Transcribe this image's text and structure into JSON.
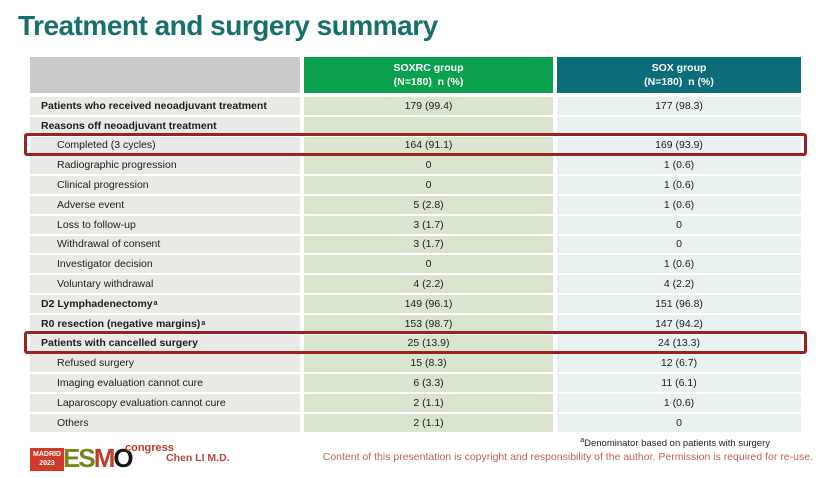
{
  "slide": {
    "title": "Treatment and surgery summary"
  },
  "table": {
    "header": {
      "soxrc": {
        "line1": "SOXRC group",
        "line2": "(N=180)  n (%)"
      },
      "sox": {
        "line1": "SOX group",
        "line2": "(N=180)  n (%)"
      }
    },
    "rows": [
      {
        "label": "Patients who received neoadjuvant treatment",
        "soxrc": "179 (99.4)",
        "sox": "177 (98.3)",
        "bold": true
      },
      {
        "label": "Reasons off neoadjuvant treatment",
        "soxrc": "",
        "sox": "",
        "bold": true
      },
      {
        "label": "Completed (3 cycles)",
        "soxrc": "164 (91.1)",
        "sox": "169 (93.9)",
        "indent": true,
        "highlight": true
      },
      {
        "label": "Radiographic progression",
        "soxrc": "0",
        "sox": "1 (0.6)",
        "indent": true
      },
      {
        "label": "Clinical progression",
        "soxrc": "0",
        "sox": "1 (0.6)",
        "indent": true
      },
      {
        "label": "Adverse event",
        "soxrc": "5 (2.8)",
        "sox": "1 (0.6)",
        "indent": true
      },
      {
        "label": "Loss to follow-up",
        "soxrc": "3 (1.7)",
        "sox": "0",
        "indent": true
      },
      {
        "label": "Withdrawal of consent",
        "soxrc": "3 (1.7)",
        "sox": "0",
        "indent": true
      },
      {
        "label": "Investigator decision",
        "soxrc": "0",
        "sox": "1 (0.6)",
        "indent": true
      },
      {
        "label": "Voluntary withdrawal",
        "soxrc": "4 (2.2)",
        "sox": "4 (2.2)",
        "indent": true
      },
      {
        "label": "D2 Lymphadenectomy",
        "sup": "a",
        "soxrc": "149 (96.1)",
        "sox": "151 (96.8)",
        "bold": true
      },
      {
        "label": "R0 resection (negative margins)",
        "sup": "a",
        "soxrc": "153 (98.7)",
        "sox": "147 (94.2)",
        "bold": true
      },
      {
        "label": "Patients with cancelled surgery",
        "soxrc": "25 (13.9)",
        "sox": "24 (13.3)",
        "bold": true,
        "highlight": true
      },
      {
        "label": "Refused surgery",
        "soxrc": "15 (8.3)",
        "sox": "12 (6.7)",
        "indent": true
      },
      {
        "label": "Imaging evaluation cannot cure",
        "soxrc": "6 (3.3)",
        "sox": "11 (6.1)",
        "indent": true
      },
      {
        "label": "Laparoscopy evaluation cannot cure",
        "soxrc": "2 (1.1)",
        "sox": "1 (0.6)",
        "indent": true
      },
      {
        "label": "Others",
        "soxrc": "2 (1.1)",
        "sox": "0",
        "indent": true
      }
    ]
  },
  "footer": {
    "footnote_sup": "a",
    "footnote_text": "Denominator based on patients with surgery",
    "author": "Chen LI M.D.",
    "copyright": "Content of this presentation is copyright and responsibility of the author. Permission is required for re-use."
  },
  "logo": {
    "city": "MADRID",
    "year": "2023",
    "congress": "congress",
    "letters": [
      {
        "ch": "E",
        "color": "#7a851e"
      },
      {
        "ch": "S",
        "color": "#7a851e"
      },
      {
        "ch": "M",
        "color": "#c23b2a"
      },
      {
        "ch": "O",
        "color": "#141414"
      }
    ]
  },
  "colors": {
    "title_teal": "#17706a",
    "header_green": "#0ba04e",
    "header_teal": "#0c6d78",
    "soxrc_cell": "#d9e5cf",
    "sox_cell": "#eaf2f1",
    "label_cell": "#e9e9e5",
    "highlight_red": "#9e2020"
  }
}
